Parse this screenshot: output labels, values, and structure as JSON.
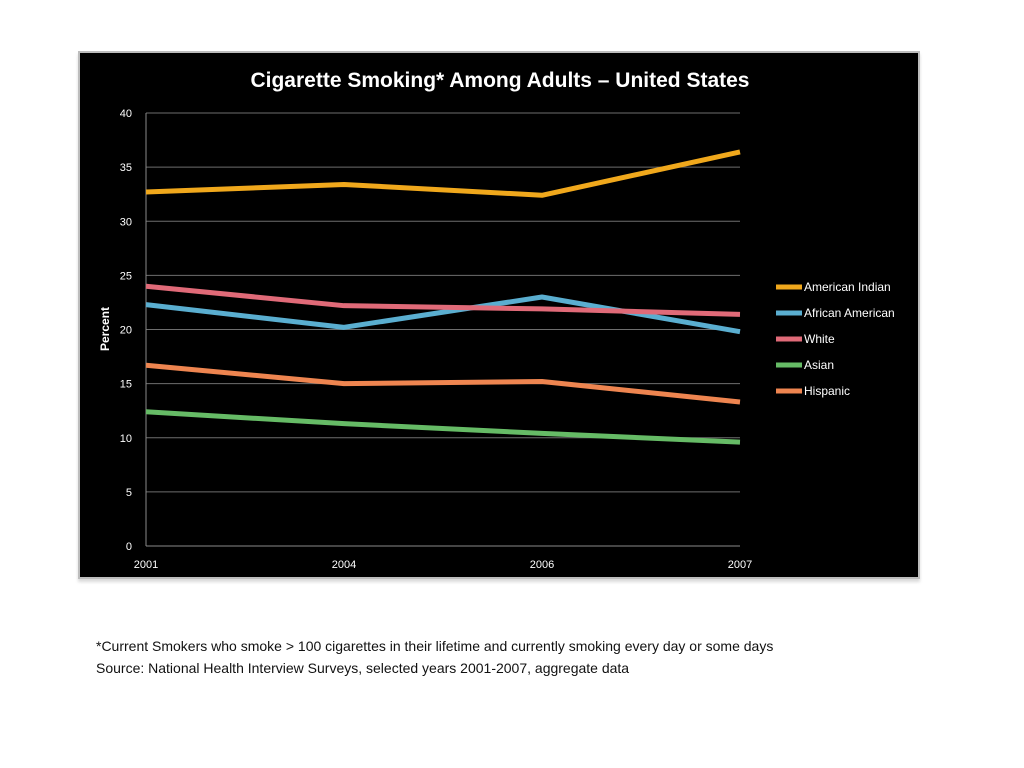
{
  "chart_data": {
    "type": "line",
    "title": "Cigarette Smoking* Among Adults – United States",
    "ylabel": "Percent",
    "xlabel": "",
    "categories": [
      "2001",
      "2004",
      "2006",
      "2007"
    ],
    "ylim": [
      0,
      40
    ],
    "yticks": [
      0,
      5,
      10,
      15,
      20,
      25,
      30,
      35,
      40
    ],
    "grid": true,
    "legend_position": "right",
    "series": [
      {
        "name": "American Indian",
        "color": "#f0a81c",
        "values": [
          32.7,
          33.4,
          32.4,
          36.4
        ]
      },
      {
        "name": "African American",
        "color": "#5aaed0",
        "values": [
          22.3,
          20.2,
          23.0,
          19.8
        ]
      },
      {
        "name": "White",
        "color": "#e06a78",
        "values": [
          24.0,
          22.2,
          21.9,
          21.4
        ]
      },
      {
        "name": "Asian",
        "color": "#66bb66",
        "values": [
          12.4,
          11.3,
          10.4,
          9.6
        ]
      },
      {
        "name": "Hispanic",
        "color": "#ee8550",
        "values": [
          16.7,
          15.0,
          15.2,
          13.3
        ]
      }
    ]
  },
  "footnotes": {
    "definition": "*Current Smokers who smoke > 100 cigarettes in their lifetime and currently smoking every day or some days",
    "source": "Source: National Health Interview Surveys, selected years 2001-2007, aggregate data"
  }
}
